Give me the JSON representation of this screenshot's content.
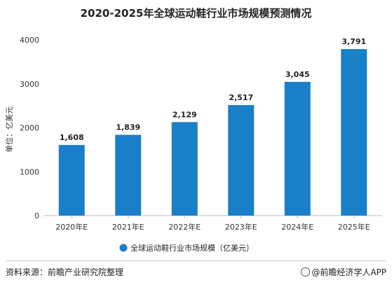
{
  "chart_data": {
    "type": "bar",
    "title": "2020-2025年全球运动鞋行业市场规模预测情况",
    "categories": [
      "2020年E",
      "2021年E",
      "2022年E",
      "2023年E",
      "2024年E",
      "2025年E"
    ],
    "series": [
      {
        "name": "全球运动鞋行业市场规模（亿美元）",
        "values": [
          1608,
          1839,
          2129,
          2517,
          3045,
          3791
        ]
      }
    ],
    "data_labels": [
      "1,608",
      "1,839",
      "2,129",
      "2,517",
      "3,045",
      "3,791"
    ],
    "ylabel": "单位：亿美元",
    "ylim": [
      0,
      4000
    ],
    "yticks": [
      0,
      1000,
      2000,
      3000,
      4000
    ],
    "grid": false,
    "legend": "bottom-center",
    "bar_color": "#1a7fc9"
  },
  "footer": {
    "source": "资料来源：前瞻产业研究院整理",
    "brand": "@前瞻经济学人APP"
  }
}
